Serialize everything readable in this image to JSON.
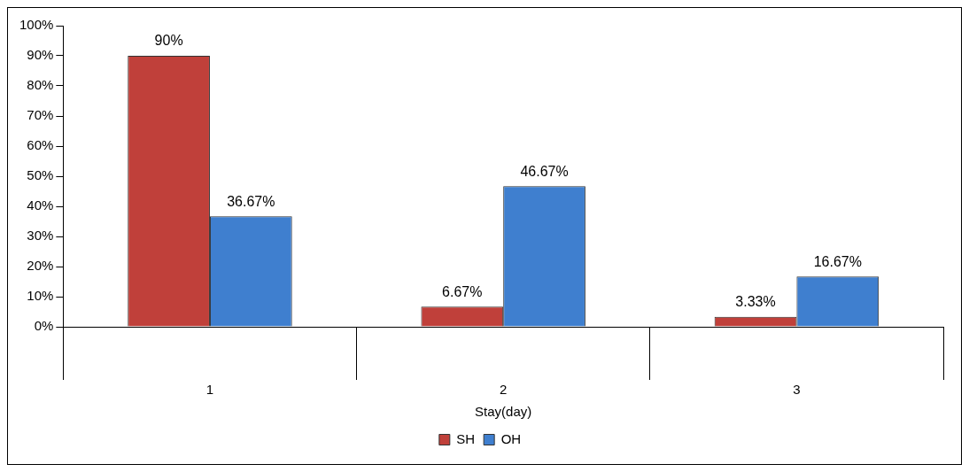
{
  "chart_data": {
    "type": "bar",
    "xlabel": "Stay(day)",
    "categories": [
      "1",
      "2",
      "3"
    ],
    "series": [
      {
        "name": "SH",
        "color": "#c0403a",
        "values": [
          90,
          6.67,
          3.33
        ],
        "value_labels": [
          "90%",
          "6.67%",
          "3.33%"
        ]
      },
      {
        "name": "OH",
        "color": "#3f7fcf",
        "values": [
          36.67,
          46.67,
          16.67
        ],
        "value_labels": [
          "36.67%",
          "46.67%",
          "16.67%"
        ]
      }
    ],
    "ylim": [
      0,
      100
    ],
    "yticks": [
      {
        "value": 0,
        "label": "0%"
      },
      {
        "value": 10,
        "label": "10%"
      },
      {
        "value": 20,
        "label": "20%"
      },
      {
        "value": 30,
        "label": "30%"
      },
      {
        "value": 40,
        "label": "40%"
      },
      {
        "value": 50,
        "label": "50%"
      },
      {
        "value": 60,
        "label": "60%"
      },
      {
        "value": 70,
        "label": "70%"
      },
      {
        "value": 80,
        "label": "80%"
      },
      {
        "value": 90,
        "label": "90%"
      },
      {
        "value": 100,
        "label": "100%"
      }
    ],
    "grid": false,
    "legend": "bottom"
  }
}
